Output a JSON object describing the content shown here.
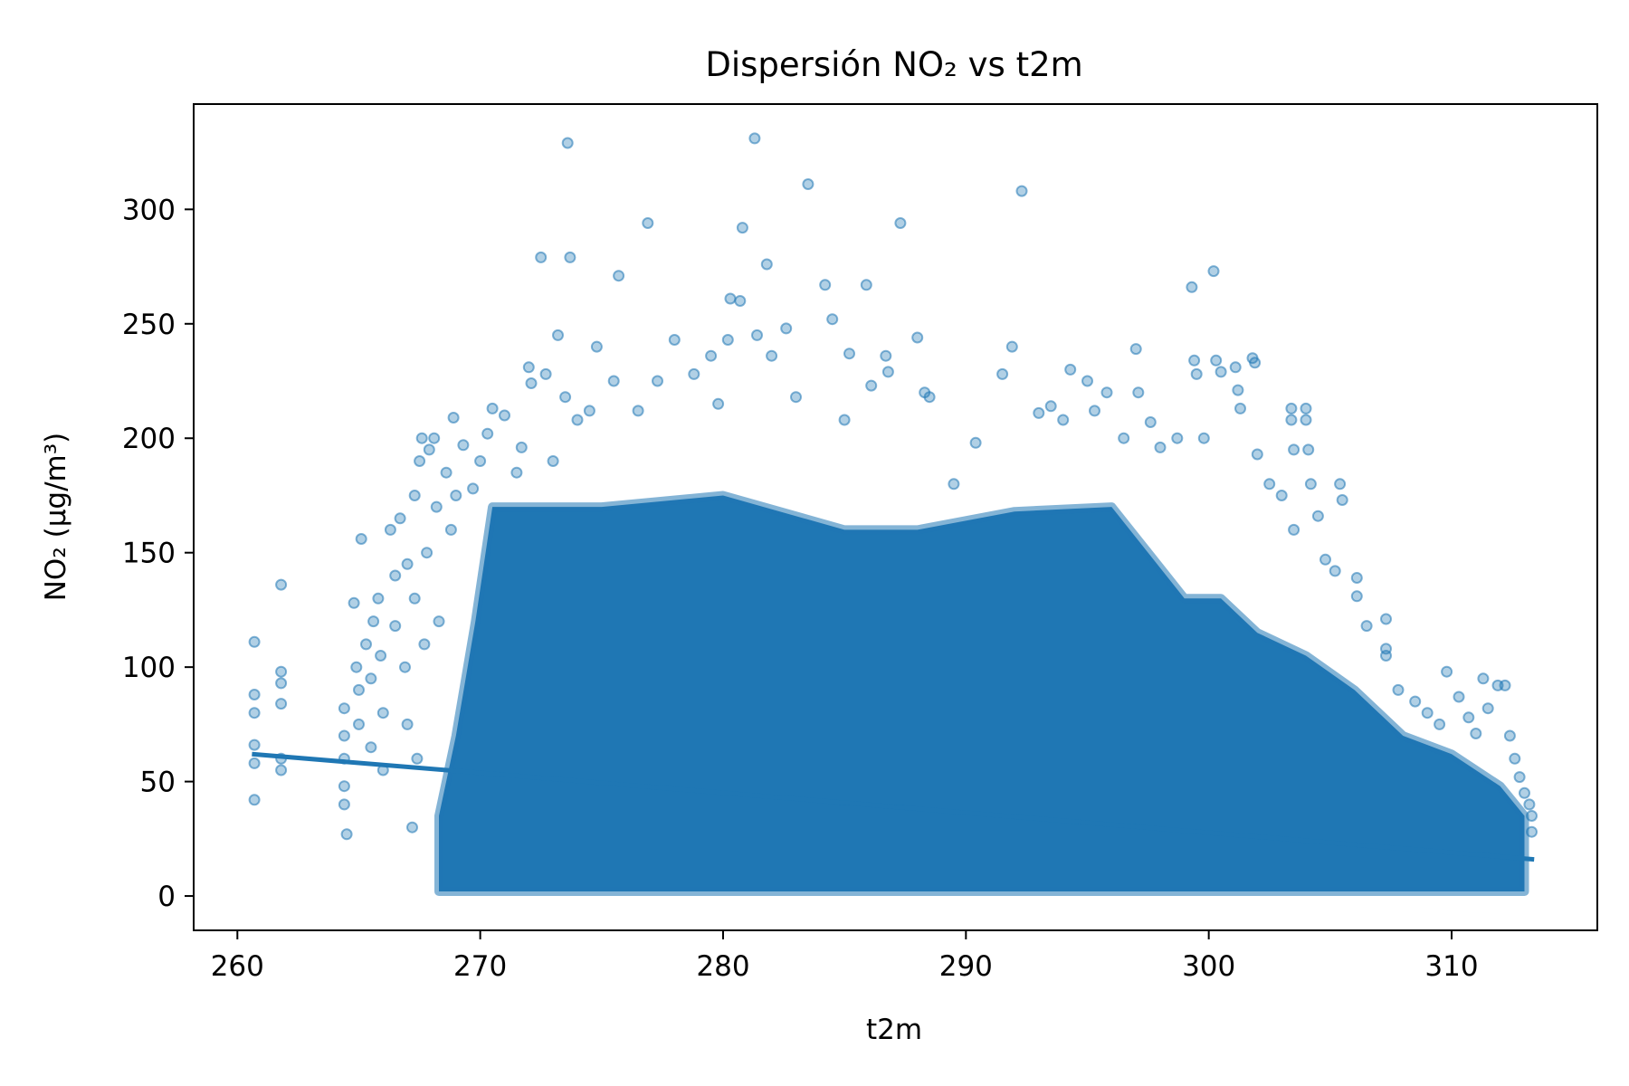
{
  "chart_data": {
    "type": "scatter",
    "title": "Dispersión NO₂ vs t2m",
    "xlabel": "t2m",
    "ylabel": "NO₂ (µg/m³)",
    "xlim": [
      258.2,
      316
    ],
    "ylim": [
      -15,
      346
    ],
    "x_ticks": [
      260,
      270,
      280,
      290,
      300,
      310
    ],
    "y_ticks": [
      0,
      50,
      100,
      150,
      200,
      250,
      300
    ],
    "grid": false,
    "legend": "none",
    "colors": {
      "points": "#1f77b4",
      "trend": "#1f77b4"
    },
    "trend_line": {
      "x": [
        260.6,
        313.4
      ],
      "y": [
        62,
        16
      ]
    },
    "dense_region": {
      "x": [
        268.3,
        269.0,
        269.8,
        270.5,
        275.0,
        280.0,
        285.0,
        288.0,
        292.0,
        296.0,
        297.5,
        299.0,
        300.5,
        302.0,
        304.0,
        306.0,
        308.0,
        310.0,
        312.0,
        313.0
      ],
      "y_upper": [
        35,
        70,
        120,
        170,
        170,
        175,
        160,
        160,
        168,
        170,
        150,
        130,
        130,
        115,
        105,
        90,
        70,
        62,
        48,
        35
      ],
      "y_lower": 2
    },
    "outliers": [
      {
        "x": 260.7,
        "y": 111
      },
      {
        "x": 260.7,
        "y": 88
      },
      {
        "x": 260.7,
        "y": 80
      },
      {
        "x": 260.7,
        "y": 66
      },
      {
        "x": 260.7,
        "y": 58
      },
      {
        "x": 260.7,
        "y": 42
      },
      {
        "x": 261.8,
        "y": 136
      },
      {
        "x": 261.8,
        "y": 98
      },
      {
        "x": 261.8,
        "y": 93
      },
      {
        "x": 261.8,
        "y": 84
      },
      {
        "x": 261.8,
        "y": 60
      },
      {
        "x": 261.8,
        "y": 55
      },
      {
        "x": 264.4,
        "y": 82
      },
      {
        "x": 264.4,
        "y": 70
      },
      {
        "x": 264.4,
        "y": 60
      },
      {
        "x": 264.4,
        "y": 48
      },
      {
        "x": 264.4,
        "y": 40
      },
      {
        "x": 264.5,
        "y": 27
      },
      {
        "x": 264.8,
        "y": 128
      },
      {
        "x": 264.9,
        "y": 100
      },
      {
        "x": 265.0,
        "y": 90
      },
      {
        "x": 265.0,
        "y": 75
      },
      {
        "x": 265.1,
        "y": 156
      },
      {
        "x": 265.3,
        "y": 110
      },
      {
        "x": 265.5,
        "y": 95
      },
      {
        "x": 265.5,
        "y": 65
      },
      {
        "x": 265.6,
        "y": 120
      },
      {
        "x": 265.8,
        "y": 130
      },
      {
        "x": 265.9,
        "y": 105
      },
      {
        "x": 266.0,
        "y": 80
      },
      {
        "x": 266.0,
        "y": 55
      },
      {
        "x": 266.3,
        "y": 160
      },
      {
        "x": 266.5,
        "y": 140
      },
      {
        "x": 266.5,
        "y": 118
      },
      {
        "x": 266.7,
        "y": 165
      },
      {
        "x": 266.9,
        "y": 100
      },
      {
        "x": 267.0,
        "y": 145
      },
      {
        "x": 267.0,
        "y": 75
      },
      {
        "x": 267.2,
        "y": 30
      },
      {
        "x": 267.3,
        "y": 175
      },
      {
        "x": 267.3,
        "y": 130
      },
      {
        "x": 267.4,
        "y": 60
      },
      {
        "x": 267.5,
        "y": 190
      },
      {
        "x": 267.6,
        "y": 200
      },
      {
        "x": 267.7,
        "y": 110
      },
      {
        "x": 267.8,
        "y": 150
      },
      {
        "x": 267.9,
        "y": 195
      },
      {
        "x": 268.1,
        "y": 200
      },
      {
        "x": 268.2,
        "y": 170
      },
      {
        "x": 268.3,
        "y": 120
      },
      {
        "x": 268.6,
        "y": 185
      },
      {
        "x": 268.8,
        "y": 160
      },
      {
        "x": 268.9,
        "y": 209
      },
      {
        "x": 269.0,
        "y": 175
      },
      {
        "x": 269.3,
        "y": 197
      },
      {
        "x": 269.7,
        "y": 178
      },
      {
        "x": 270.0,
        "y": 190
      },
      {
        "x": 270.3,
        "y": 202
      },
      {
        "x": 270.5,
        "y": 213
      },
      {
        "x": 271.0,
        "y": 210
      },
      {
        "x": 271.5,
        "y": 185
      },
      {
        "x": 271.7,
        "y": 196
      },
      {
        "x": 272.0,
        "y": 231
      },
      {
        "x": 272.1,
        "y": 224
      },
      {
        "x": 272.5,
        "y": 279
      },
      {
        "x": 272.7,
        "y": 228
      },
      {
        "x": 273.0,
        "y": 190
      },
      {
        "x": 273.2,
        "y": 245
      },
      {
        "x": 273.5,
        "y": 218
      },
      {
        "x": 273.6,
        "y": 329
      },
      {
        "x": 273.7,
        "y": 279
      },
      {
        "x": 274.0,
        "y": 208
      },
      {
        "x": 274.5,
        "y": 212
      },
      {
        "x": 274.8,
        "y": 240
      },
      {
        "x": 275.5,
        "y": 225
      },
      {
        "x": 275.7,
        "y": 271
      },
      {
        "x": 276.5,
        "y": 212
      },
      {
        "x": 276.9,
        "y": 294
      },
      {
        "x": 277.3,
        "y": 225
      },
      {
        "x": 278.0,
        "y": 243
      },
      {
        "x": 278.8,
        "y": 228
      },
      {
        "x": 279.5,
        "y": 236
      },
      {
        "x": 279.8,
        "y": 215
      },
      {
        "x": 280.2,
        "y": 243
      },
      {
        "x": 280.3,
        "y": 261
      },
      {
        "x": 280.7,
        "y": 260
      },
      {
        "x": 280.8,
        "y": 292
      },
      {
        "x": 281.3,
        "y": 331
      },
      {
        "x": 281.4,
        "y": 245
      },
      {
        "x": 281.8,
        "y": 276
      },
      {
        "x": 282.0,
        "y": 236
      },
      {
        "x": 282.6,
        "y": 248
      },
      {
        "x": 283.0,
        "y": 218
      },
      {
        "x": 283.5,
        "y": 311
      },
      {
        "x": 284.2,
        "y": 267
      },
      {
        "x": 284.5,
        "y": 252
      },
      {
        "x": 285.0,
        "y": 208
      },
      {
        "x": 285.2,
        "y": 237
      },
      {
        "x": 285.9,
        "y": 267
      },
      {
        "x": 286.1,
        "y": 223
      },
      {
        "x": 286.7,
        "y": 236
      },
      {
        "x": 286.8,
        "y": 229
      },
      {
        "x": 287.3,
        "y": 294
      },
      {
        "x": 288.0,
        "y": 244
      },
      {
        "x": 288.3,
        "y": 220
      },
      {
        "x": 288.5,
        "y": 218
      },
      {
        "x": 289.5,
        "y": 180
      },
      {
        "x": 290.4,
        "y": 198
      },
      {
        "x": 291.5,
        "y": 228
      },
      {
        "x": 291.9,
        "y": 240
      },
      {
        "x": 292.3,
        "y": 308
      },
      {
        "x": 293.0,
        "y": 211
      },
      {
        "x": 293.5,
        "y": 214
      },
      {
        "x": 294.0,
        "y": 208
      },
      {
        "x": 294.3,
        "y": 230
      },
      {
        "x": 295.0,
        "y": 225
      },
      {
        "x": 295.3,
        "y": 212
      },
      {
        "x": 295.8,
        "y": 220
      },
      {
        "x": 296.5,
        "y": 200
      },
      {
        "x": 297.0,
        "y": 239
      },
      {
        "x": 297.1,
        "y": 220
      },
      {
        "x": 297.6,
        "y": 207
      },
      {
        "x": 298.0,
        "y": 196
      },
      {
        "x": 298.7,
        "y": 200
      },
      {
        "x": 299.3,
        "y": 266
      },
      {
        "x": 299.4,
        "y": 234
      },
      {
        "x": 299.5,
        "y": 228
      },
      {
        "x": 299.8,
        "y": 200
      },
      {
        "x": 300.2,
        "y": 273
      },
      {
        "x": 300.3,
        "y": 234
      },
      {
        "x": 300.5,
        "y": 229
      },
      {
        "x": 301.1,
        "y": 231
      },
      {
        "x": 301.2,
        "y": 221
      },
      {
        "x": 301.3,
        "y": 213
      },
      {
        "x": 301.8,
        "y": 235
      },
      {
        "x": 301.9,
        "y": 233
      },
      {
        "x": 302.0,
        "y": 193
      },
      {
        "x": 302.5,
        "y": 180
      },
      {
        "x": 303.0,
        "y": 175
      },
      {
        "x": 303.4,
        "y": 213
      },
      {
        "x": 303.4,
        "y": 208
      },
      {
        "x": 303.5,
        "y": 195
      },
      {
        "x": 303.5,
        "y": 160
      },
      {
        "x": 304.0,
        "y": 213
      },
      {
        "x": 304.0,
        "y": 208
      },
      {
        "x": 304.1,
        "y": 195
      },
      {
        "x": 304.2,
        "y": 180
      },
      {
        "x": 304.5,
        "y": 166
      },
      {
        "x": 304.8,
        "y": 147
      },
      {
        "x": 305.2,
        "y": 142
      },
      {
        "x": 305.4,
        "y": 180
      },
      {
        "x": 305.5,
        "y": 173
      },
      {
        "x": 306.1,
        "y": 139
      },
      {
        "x": 306.1,
        "y": 131
      },
      {
        "x": 306.5,
        "y": 118
      },
      {
        "x": 307.3,
        "y": 121
      },
      {
        "x": 307.3,
        "y": 108
      },
      {
        "x": 307.3,
        "y": 105
      },
      {
        "x": 307.8,
        "y": 90
      },
      {
        "x": 308.5,
        "y": 85
      },
      {
        "x": 309.0,
        "y": 80
      },
      {
        "x": 309.5,
        "y": 75
      },
      {
        "x": 309.8,
        "y": 98
      },
      {
        "x": 310.3,
        "y": 87
      },
      {
        "x": 310.7,
        "y": 78
      },
      {
        "x": 311.0,
        "y": 71
      },
      {
        "x": 311.3,
        "y": 95
      },
      {
        "x": 311.5,
        "y": 82
      },
      {
        "x": 311.9,
        "y": 92
      },
      {
        "x": 312.2,
        "y": 92
      },
      {
        "x": 312.4,
        "y": 70
      },
      {
        "x": 312.6,
        "y": 60
      },
      {
        "x": 312.8,
        "y": 52
      },
      {
        "x": 313.0,
        "y": 45
      },
      {
        "x": 313.2,
        "y": 40
      },
      {
        "x": 313.3,
        "y": 35
      },
      {
        "x": 313.3,
        "y": 28
      }
    ]
  }
}
